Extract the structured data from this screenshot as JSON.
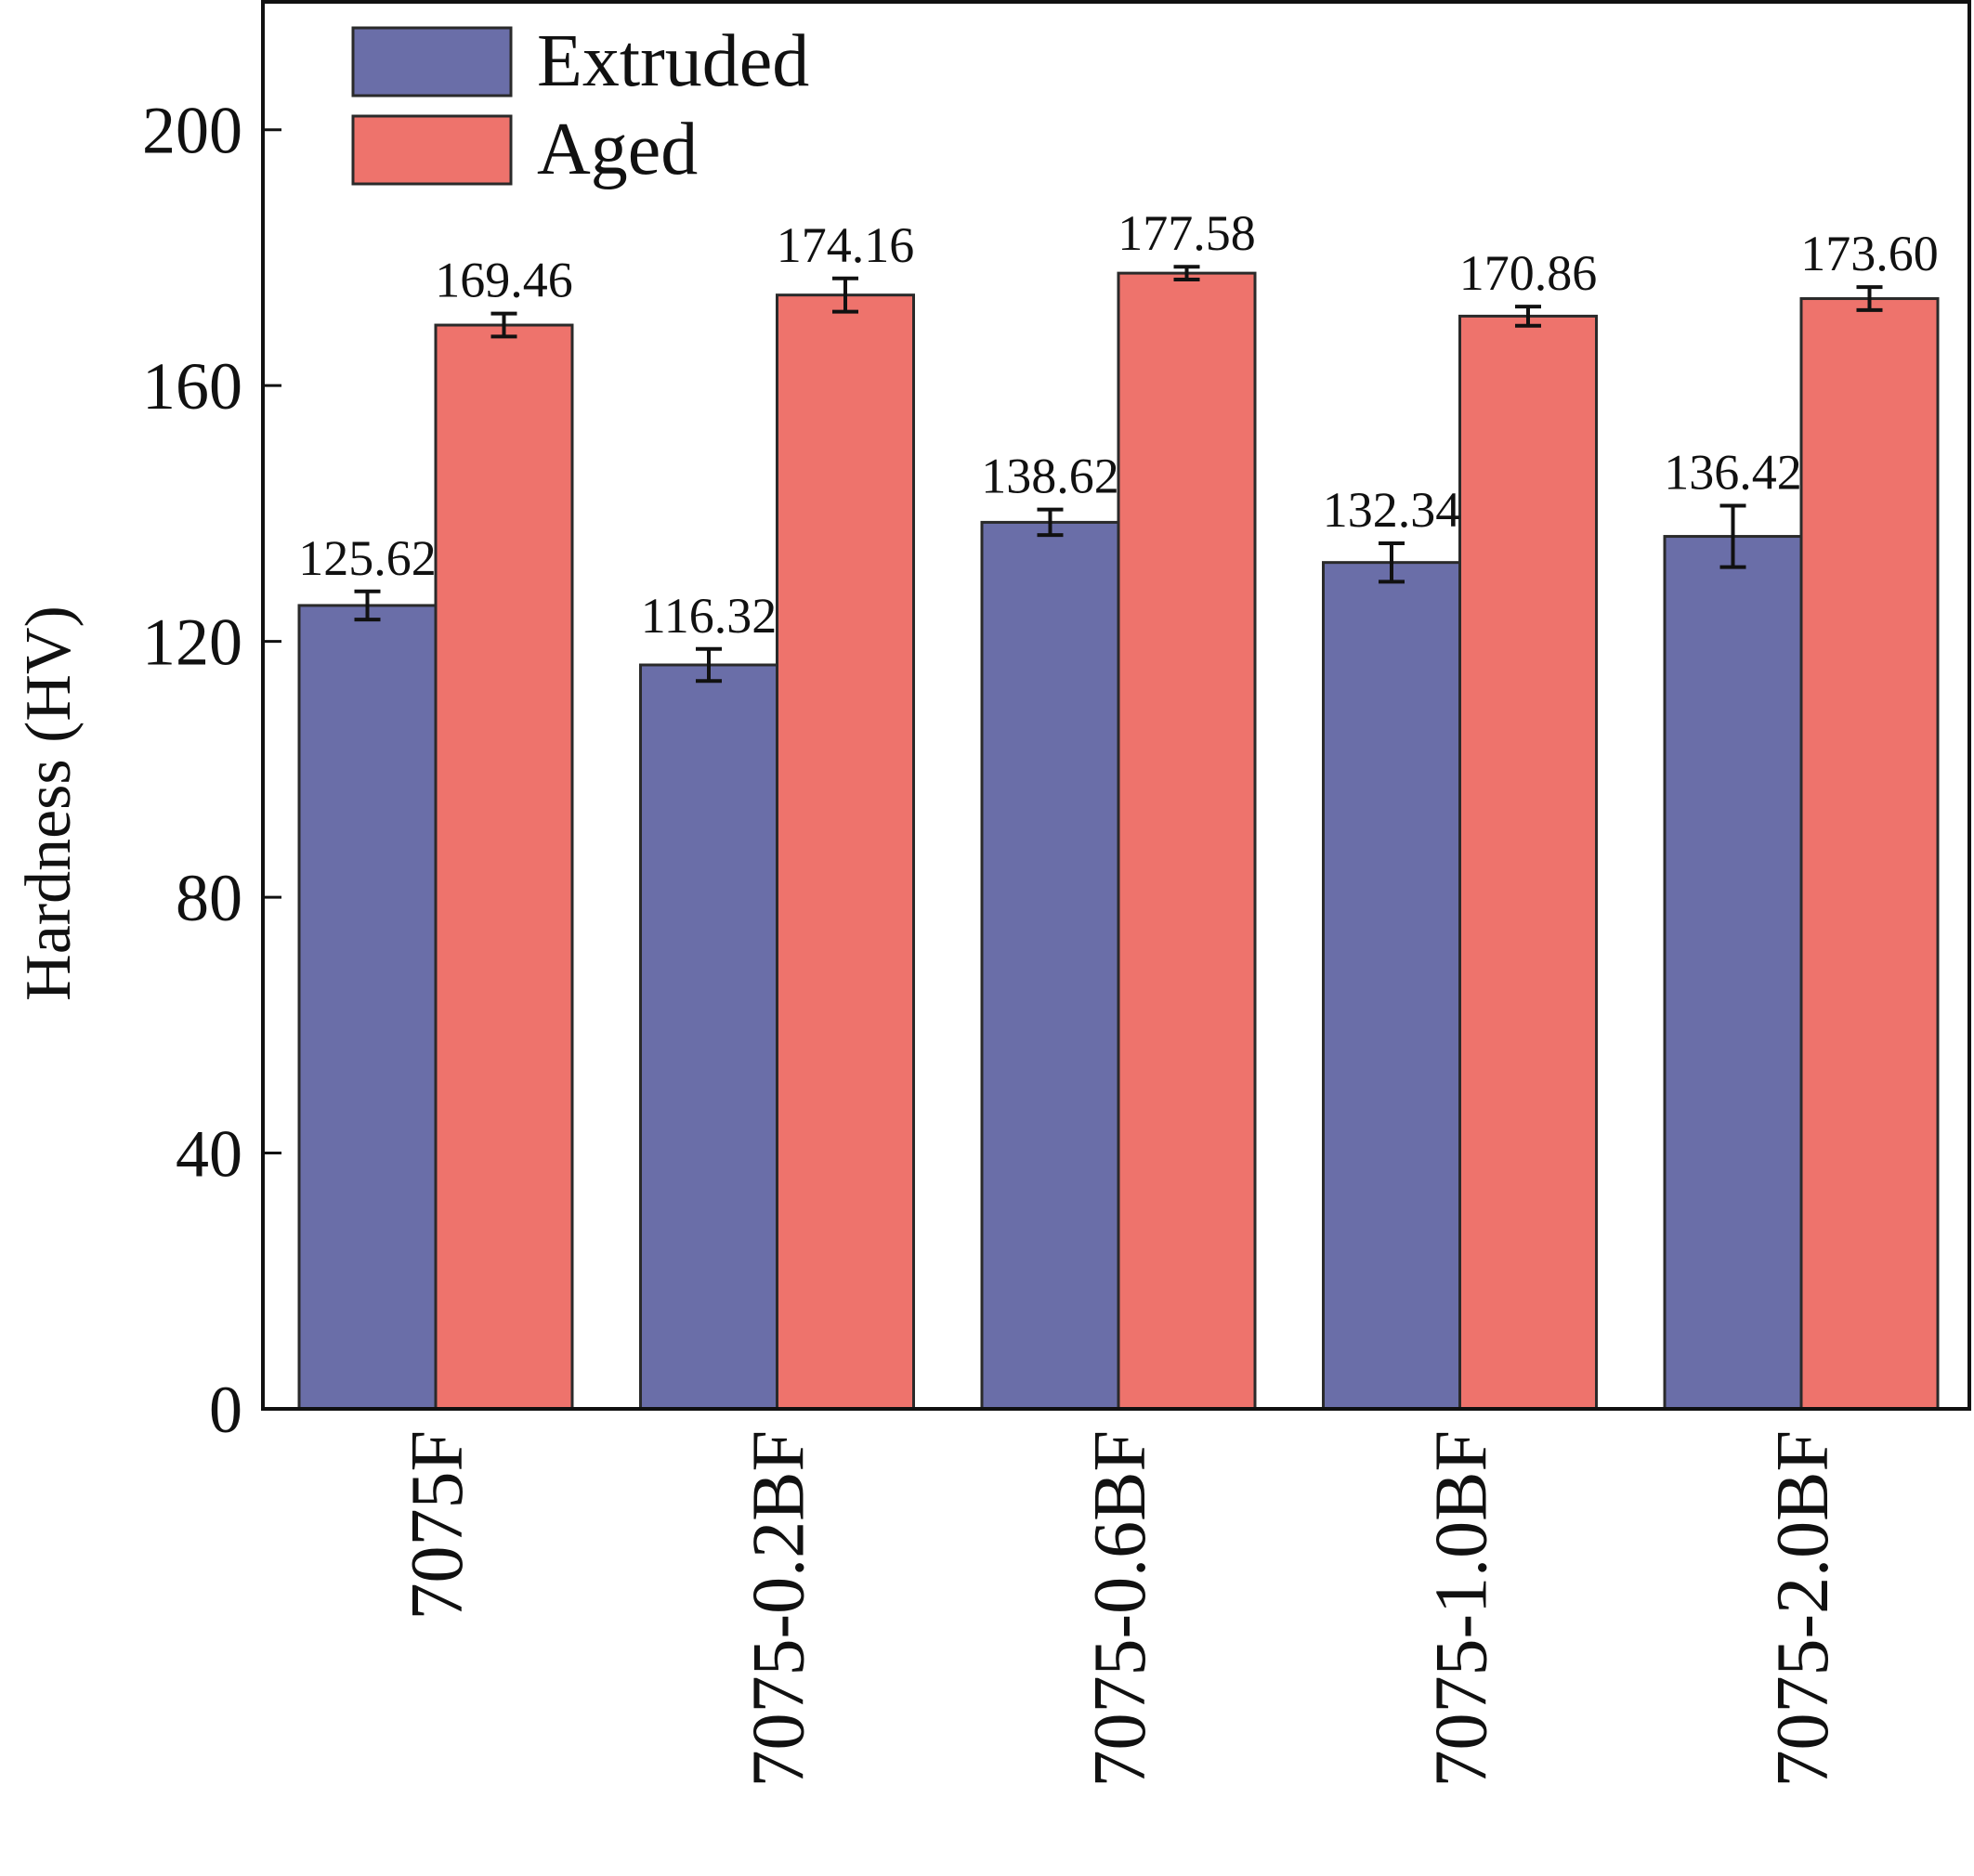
{
  "chart_data": {
    "type": "bar",
    "ylabel": "Hardness (HV)",
    "xlabel": "",
    "ylim": [
      0,
      220
    ],
    "yticks": [
      0,
      40,
      80,
      120,
      160,
      200
    ],
    "ytick_labels": [
      "0",
      "40",
      "80",
      "120",
      "160",
      "200"
    ],
    "categories": [
      "7075F",
      "7075-0.2BF",
      "7075-0.6BF",
      "7075-1.0BF",
      "7075-2.0BF"
    ],
    "series": [
      {
        "name": "Extruded",
        "color": "#6a6ea8",
        "values": [
          125.62,
          116.32,
          138.62,
          132.34,
          136.42
        ],
        "value_labels": [
          "125.62",
          "116.32",
          "138.62",
          "132.34",
          "136.42"
        ],
        "errors": [
          2.2,
          2.5,
          2.0,
          3.0,
          4.8
        ]
      },
      {
        "name": "Aged",
        "color": "#ee736c",
        "values": [
          169.46,
          174.16,
          177.58,
          170.86,
          173.6
        ],
        "value_labels": [
          "169.46",
          "174.16",
          "177.58",
          "170.86",
          "173.60"
        ],
        "errors": [
          1.8,
          2.6,
          1.0,
          1.5,
          1.8
        ]
      }
    ],
    "legend_position": "top-left",
    "grid": false
  }
}
